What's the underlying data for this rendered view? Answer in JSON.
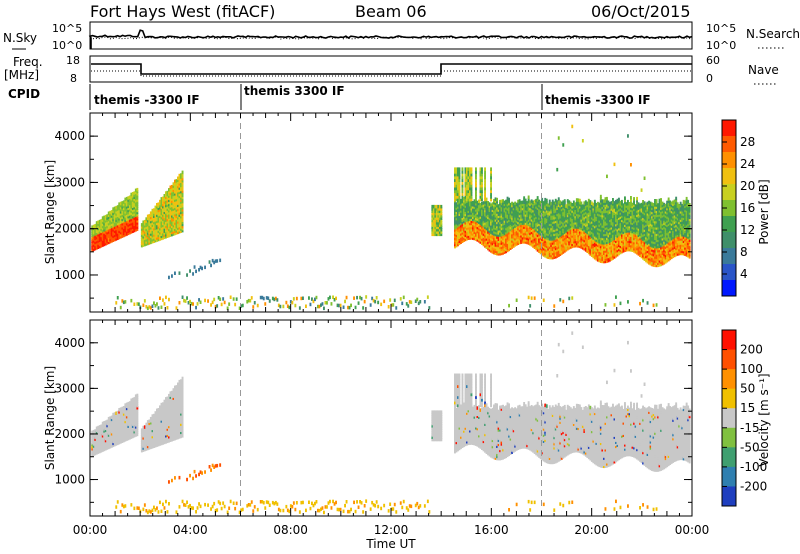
{
  "header": {
    "station": "Fort Hays West (fitACF)",
    "beam": "Beam 06",
    "date": "06/Oct/2015"
  },
  "top_panels": {
    "nsky_label": "N.Sky",
    "nsky_ticks": [
      "10^5",
      "10^0"
    ],
    "nsearch_label": "N.Search",
    "nsearch_ticks": [
      "10^5",
      "10^0"
    ],
    "freq_label_line1": "Freq.",
    "freq_label_line2": "[MHz]",
    "freq_ticks": [
      "18",
      "8"
    ],
    "nave_label": "Nave",
    "nave_ticks": [
      "60",
      "0"
    ],
    "cpid_label": "CPID",
    "cpid_segments": [
      {
        "label": "themis -3300 IF",
        "start_h": 0,
        "end_h": 6
      },
      {
        "label": "themis 3300 IF",
        "start_h": 6,
        "end_h": 18
      },
      {
        "label": "themis -3300 IF",
        "start_h": 18,
        "end_h": 24
      }
    ]
  },
  "chart_data": [
    {
      "type": "heatmap",
      "name": "power",
      "ylabel": "Slant Range [km]",
      "ylim": [
        200,
        4500
      ],
      "yticks": [
        "4000",
        "3000",
        "2000",
        "1000"
      ],
      "colorbar_label": "Power [dB]",
      "colorbar_ticks": [
        "28",
        "24",
        "20",
        "16",
        "12",
        "8",
        "4"
      ],
      "colorbar_range": [
        0,
        32
      ],
      "colors": [
        "#0018ff",
        "#2a55c8",
        "#3a7a9a",
        "#3f8f6a",
        "#3fa050",
        "#7fc030",
        "#c8d020",
        "#f0c010",
        "#ff9000",
        "#ff5a00",
        "#ff1800"
      ]
    },
    {
      "type": "heatmap",
      "name": "velocity",
      "ylabel": "Slant Range [km]",
      "ylim": [
        200,
        4500
      ],
      "yticks": [
        "4000",
        "3000",
        "2000",
        "1000"
      ],
      "xlabel": "Time UT",
      "xticks": [
        "00:00",
        "04:00",
        "08:00",
        "12:00",
        "16:00",
        "20:00",
        "00:00"
      ],
      "xlim_hours": [
        0,
        24
      ],
      "colorbar_label": "Velocity [m s⁻¹]",
      "colorbar_ticks": [
        "200",
        "100",
        "50",
        "15",
        "-15",
        "-50",
        "-100",
        "-200"
      ],
      "colors": [
        "#1f3fbf",
        "#2f7fb0",
        "#3f9f70",
        "#80c040",
        "#c8c8c8",
        "#f0c000",
        "#ff9000",
        "#ff5000",
        "#ff1000"
      ]
    }
  ]
}
